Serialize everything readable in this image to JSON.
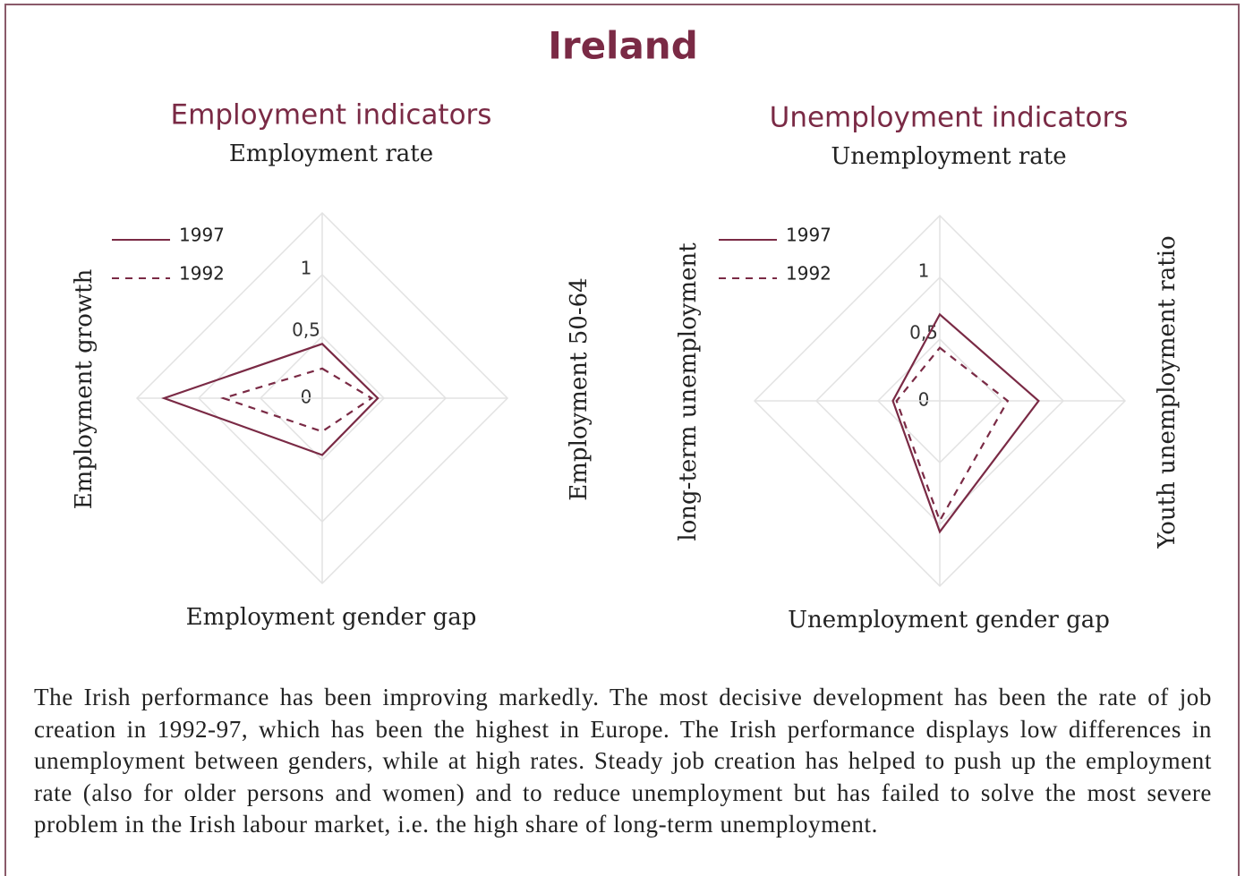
{
  "title": "Ireland",
  "text": "The Irish performance has been improving markedly. The most decisive development has been the rate of job creation in 1992-97, which has been the highest in Europe. The Irish performance displays low differences in unemployment between genders, while at high rates. Steady job creation has helped to push up the employment rate (also for older persons and women) and to reduce unemployment but has failed to solve the most severe problem in the Irish labour market, i.e. the high share of long-term unemployment.",
  "chart_data": [
    {
      "type": "radar",
      "title": "Employment indicators",
      "categories": [
        "Employment rate",
        "Employment 50-64",
        "Employment gender gap",
        "Employment growth"
      ],
      "series": [
        {
          "name": "1997",
          "color": "#7a2a45",
          "dash": false,
          "values": [
            0.44,
            0.45,
            0.46,
            1.28
          ]
        },
        {
          "name": "1992",
          "color": "#7a2a45",
          "dash": true,
          "values": [
            0.24,
            0.4,
            0.27,
            0.8
          ]
        }
      ],
      "rlim": [
        0,
        1.5
      ],
      "rticks": [
        0,
        {
          "value": 0.5,
          "label": "0,5"
        },
        1
      ]
    },
    {
      "type": "radar",
      "title": "Unemployment indicators",
      "categories": [
        "Unemployment rate",
        "Youth unemployment ratio",
        "Unemployment gender gap",
        "long-term unemployment"
      ],
      "series": [
        {
          "name": "1997",
          "color": "#7a2a45",
          "dash": false,
          "values": [
            0.7,
            0.8,
            1.06,
            0.38
          ]
        },
        {
          "name": "1992",
          "color": "#7a2a45",
          "dash": true,
          "values": [
            0.43,
            0.55,
            0.97,
            0.35
          ]
        }
      ],
      "rlim": [
        0,
        1.5
      ],
      "rticks": [
        0,
        {
          "value": 0.5,
          "label": "0,5"
        },
        1
      ]
    }
  ]
}
